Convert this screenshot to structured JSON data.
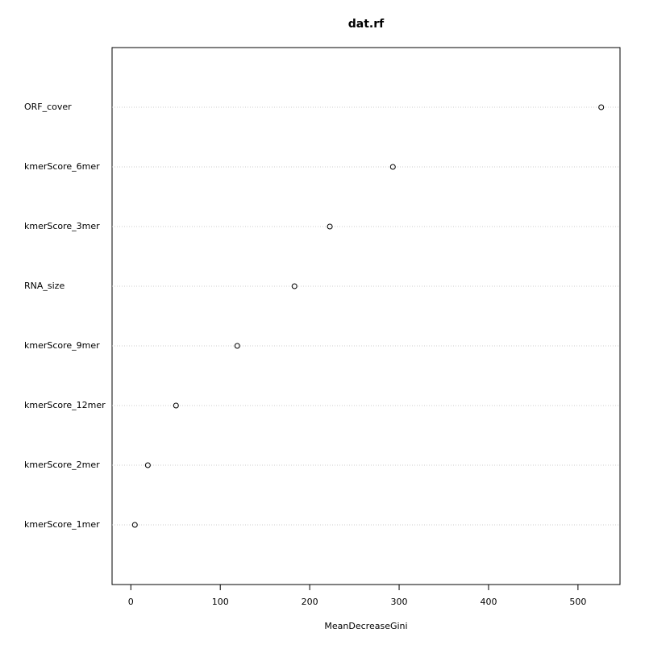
{
  "chart_data": {
    "type": "dot",
    "title": "dat.rf",
    "x_label": "MeanDecreaseGini",
    "categories": [
      "ORF_cover",
      "kmerScore_6mer",
      "kmerScore_3mer",
      "RNA_size",
      "kmerScore_9mer",
      "kmerScore_12mer",
      "kmerScore_2mer",
      "kmerScore_1mer"
    ],
    "values": [
      526,
      293,
      222.5,
      183,
      119,
      50.5,
      19,
      4.5
    ],
    "color": "#000000",
    "xlim": [
      -21,
      547
    ],
    "xticks": [
      0,
      100,
      200,
      300,
      400,
      500
    ],
    "grid": true
  }
}
